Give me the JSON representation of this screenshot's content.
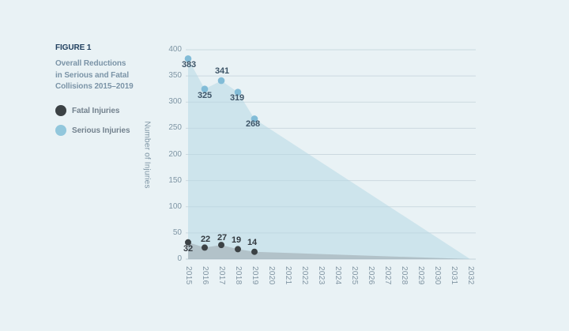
{
  "figure": {
    "label": "FIGURE 1",
    "title_lines": [
      "Overall Reductions",
      "in Serious and Fatal",
      "Collisions 2015–2019"
    ]
  },
  "legend": {
    "items": [
      {
        "label": "Fatal Injuries",
        "color": "#3c4245"
      },
      {
        "label": "Serious Injuries",
        "color": "#92c7dc"
      }
    ]
  },
  "chart_data": {
    "type": "area",
    "title": "Overall Reductions in Serious and Fatal Collisions 2015–2019",
    "xlabel": "",
    "ylabel": "Number of Injuries",
    "ylim": [
      0,
      400
    ],
    "y_ticks": [
      0,
      50,
      100,
      150,
      200,
      250,
      300,
      350,
      400
    ],
    "x_ticks": [
      2015,
      2016,
      2017,
      2018,
      2019,
      2020,
      2021,
      2022,
      2023,
      2024,
      2025,
      2026,
      2027,
      2028,
      2029,
      2030,
      2031,
      2032
    ],
    "x_tick_rotation": 90,
    "grid": "horizontal",
    "gridline_color": "#ccd9e0",
    "legend_position": "left",
    "background_color": "#e9f2f5",
    "series": [
      {
        "name": "Serious Injuries",
        "years": [
          2015,
          2016,
          2017,
          2018,
          2019
        ],
        "values": [
          383,
          325,
          341,
          319,
          268
        ],
        "projection_to_zero_year": 2032,
        "dot_color": "#82bcd7",
        "fill_color": "rgba(181,214,229,0.52)",
        "label_color": "#3e5568"
      },
      {
        "name": "Fatal Injuries",
        "years": [
          2015,
          2016,
          2017,
          2018,
          2019
        ],
        "values": [
          32,
          22,
          27,
          19,
          14
        ],
        "projection_to_zero_year": 2032,
        "dot_color": "#3c4245",
        "fill_color": "rgba(128,133,137,0.35)",
        "label_color": "#333a40"
      }
    ]
  }
}
